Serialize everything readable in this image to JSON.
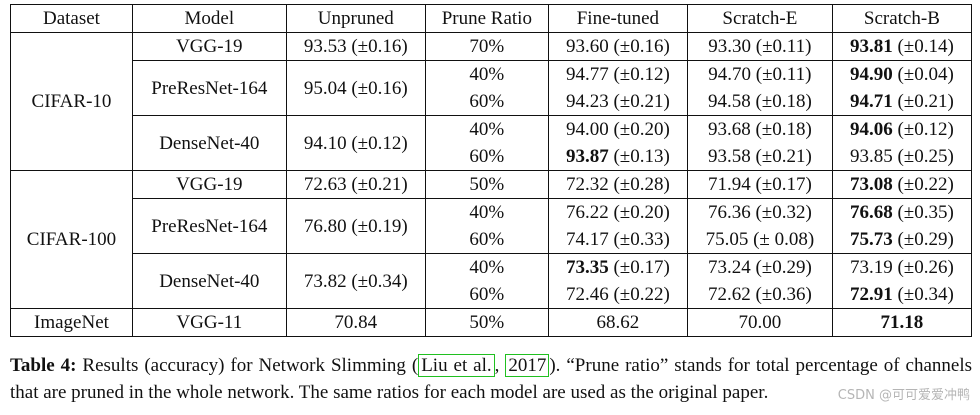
{
  "table": {
    "headers": [
      "Dataset",
      "Model",
      "Unpruned",
      "Prune Ratio",
      "Fine-tuned",
      "Scratch-E",
      "Scratch-B"
    ],
    "groups": [
      {
        "dataset": "CIFAR-10",
        "models": [
          {
            "name": "VGG-19",
            "unpruned": "93.53 (±0.16)",
            "rows": [
              {
                "ratio": "70%",
                "fine_tuned": "93.60 (±0.16)",
                "scratch_e": "93.30 (±0.11)",
                "scratch_b_bold": "93.81",
                "scratch_b_rest": " (±0.14)"
              }
            ]
          },
          {
            "name": "PreResNet-164",
            "unpruned": "95.04 (±0.16)",
            "rows": [
              {
                "ratio": "40%",
                "fine_tuned": "94.77 (±0.12)",
                "scratch_e": "94.70 (±0.11)",
                "scratch_b_bold": "94.90",
                "scratch_b_rest": " (±0.04)"
              },
              {
                "ratio": "60%",
                "fine_tuned": "94.23 (±0.21)",
                "scratch_e": "94.58 (±0.18)",
                "scratch_b_bold": "94.71",
                "scratch_b_rest": " (±0.21)"
              }
            ]
          },
          {
            "name": "DenseNet-40",
            "unpruned": "94.10 (±0.12)",
            "rows": [
              {
                "ratio": "40%",
                "fine_tuned": "94.00 (±0.20)",
                "scratch_e": "93.68 (±0.18)",
                "scratch_b_bold": "94.06",
                "scratch_b_rest": " (±0.12)"
              },
              {
                "ratio": "60%",
                "fine_tuned_bold": "93.87",
                "fine_tuned_rest": " (±0.13)",
                "scratch_e": "93.58 (±0.21)",
                "scratch_b": "93.85 (±0.25)"
              }
            ]
          }
        ]
      },
      {
        "dataset": "CIFAR-100",
        "models": [
          {
            "name": "VGG-19",
            "unpruned": "72.63 (±0.21)",
            "rows": [
              {
                "ratio": "50%",
                "fine_tuned": "72.32 (±0.28)",
                "scratch_e": "71.94 (±0.17)",
                "scratch_b_bold": "73.08",
                "scratch_b_rest": " (±0.22)"
              }
            ]
          },
          {
            "name": "PreResNet-164",
            "unpruned": "76.80 (±0.19)",
            "rows": [
              {
                "ratio": "40%",
                "fine_tuned": "76.22 (±0.20)",
                "scratch_e": "76.36 (±0.32)",
                "scratch_b_bold": "76.68",
                "scratch_b_rest": " (±0.35)"
              },
              {
                "ratio": "60%",
                "fine_tuned": "74.17 (±0.33)",
                "scratch_e": "75.05 (± 0.08)",
                "scratch_b_bold": "75.73",
                "scratch_b_rest": " (±0.29)"
              }
            ]
          },
          {
            "name": "DenseNet-40",
            "unpruned": "73.82 (±0.34)",
            "rows": [
              {
                "ratio": "40%",
                "fine_tuned_bold": "73.35",
                "fine_tuned_rest": " (±0.17)",
                "scratch_e": "73.24 (±0.29)",
                "scratch_b": "73.19 (±0.26)"
              },
              {
                "ratio": "60%",
                "fine_tuned": "72.46 (±0.22)",
                "scratch_e": "72.62 (±0.36)",
                "scratch_b_bold": "72.91",
                "scratch_b_rest": " (±0.34)"
              }
            ]
          }
        ]
      },
      {
        "dataset": "ImageNet",
        "models": [
          {
            "name": "VGG-11",
            "unpruned": "70.84",
            "rows": [
              {
                "ratio": "50%",
                "fine_tuned": "68.62",
                "scratch_e": "70.00",
                "scratch_b_bold": "71.18",
                "scratch_b_rest": ""
              }
            ]
          }
        ]
      }
    ]
  },
  "caption": {
    "label": "Table 4:",
    "text_before": " Results (accuracy) for Network Slimming (",
    "cite_author": "Liu et al.",
    "cite_sep": ", ",
    "cite_year": "2017",
    "text_after": "). “Prune ratio” stands for total percentage of channels that are pruned in the whole network. The same ratios for each model are used as the original paper."
  },
  "watermark": "CSDN @可可爱爱冲鸭"
}
